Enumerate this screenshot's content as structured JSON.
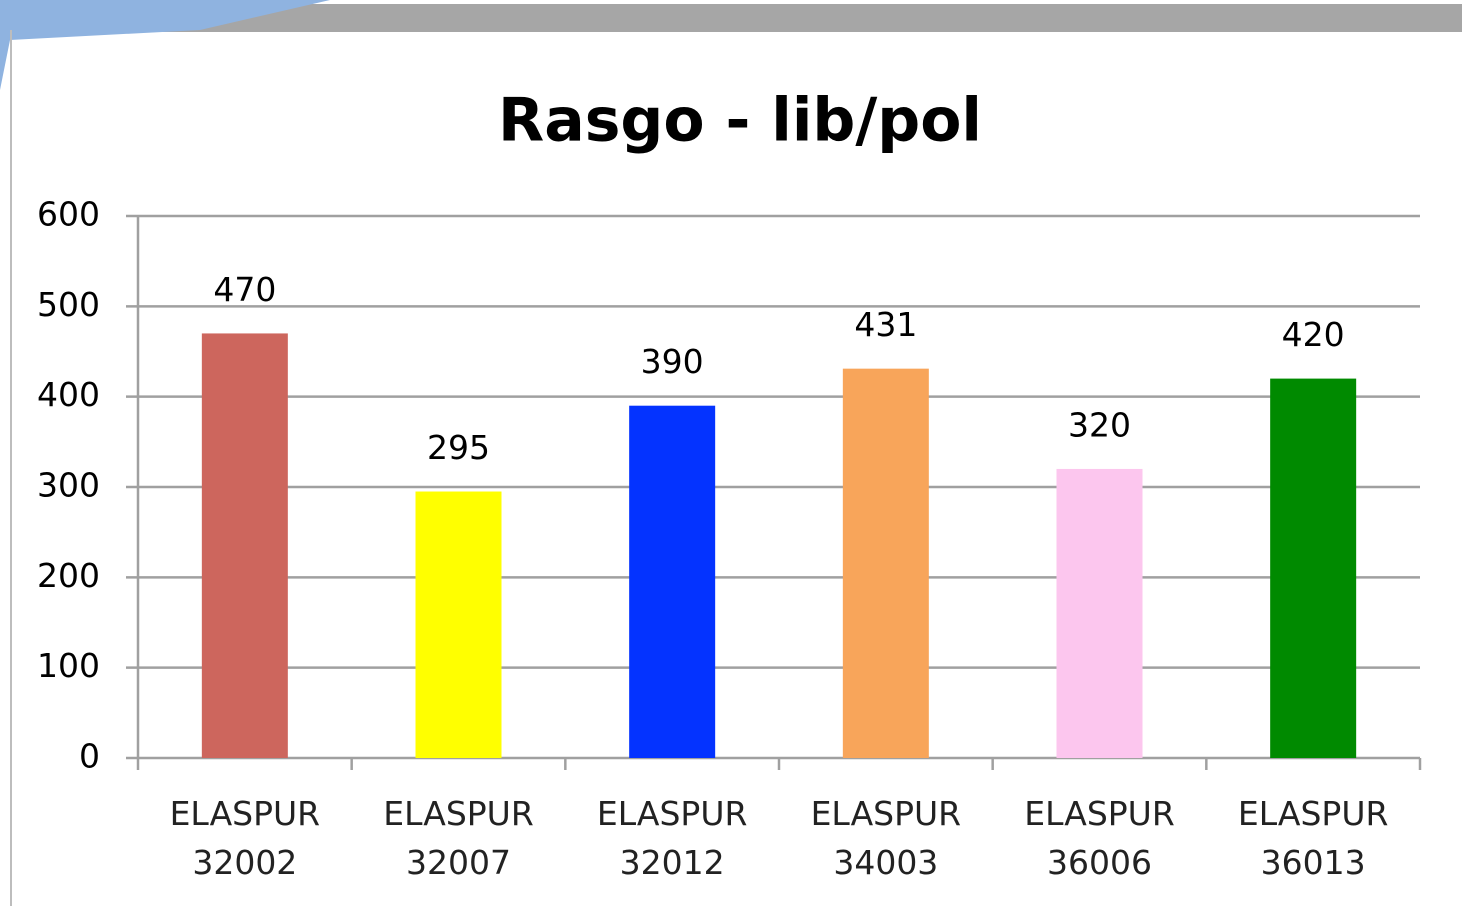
{
  "chart_data": {
    "type": "bar",
    "title": "Rasgo - lib/pol",
    "categories": [
      "ELASPUR 32002",
      "ELASPUR 32007",
      "ELASPUR 32012",
      "ELASPUR 34003",
      "ELASPUR 36006",
      "ELASPUR 36013"
    ],
    "values": [
      470,
      295,
      390,
      431,
      320,
      420
    ],
    "colors": [
      "#cd665d",
      "#ffff00",
      "#0433ff",
      "#f8a55a",
      "#fcc6ee",
      "#008a00"
    ],
    "ylim": [
      0,
      600
    ],
    "yticks": [
      0,
      100,
      200,
      300,
      400,
      500,
      600
    ],
    "grid": true
  }
}
